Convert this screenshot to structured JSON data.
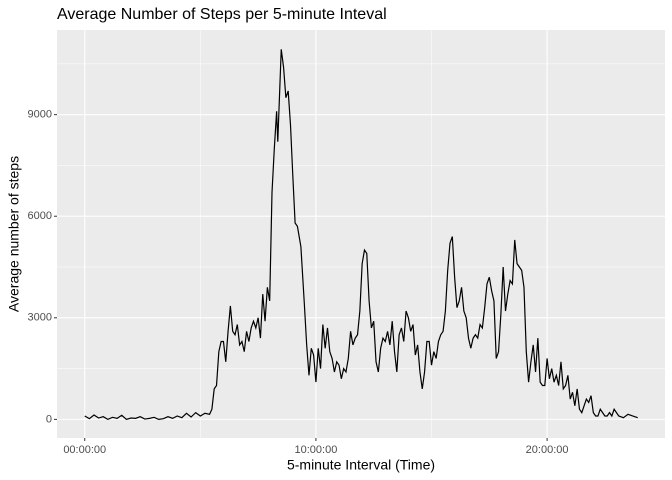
{
  "chart_data": {
    "type": "line",
    "title": "Average Number of Steps per 5-minute Inteval",
    "x_label": "5-minute Interval (Time)",
    "y_label": "Average number of steps",
    "xlim": [
      -1.2,
      25.1
    ],
    "ylim": [
      -550,
      11500
    ],
    "xticks": [
      {
        "value": 0,
        "label": "00:00:00"
      },
      {
        "value": 10,
        "label": "10:00:00"
      },
      {
        "value": 20,
        "label": "20:00:00"
      }
    ],
    "yticks": [
      0,
      3000,
      6000,
      9000
    ],
    "grid": true,
    "series": [
      {
        "color": "#000000",
        "x": [
          0,
          0.2,
          0.4,
          0.6,
          0.8,
          1.0,
          1.2,
          1.4,
          1.6,
          1.8,
          2.0,
          2.2,
          2.4,
          2.6,
          2.8,
          3.0,
          3.2,
          3.4,
          3.6,
          3.8,
          4.0,
          4.2,
          4.4,
          4.6,
          4.8,
          5.0,
          5.2,
          5.4,
          5.5,
          5.6,
          5.7,
          5.8,
          5.9,
          6.0,
          6.1,
          6.2,
          6.3,
          6.4,
          6.5,
          6.6,
          6.7,
          6.8,
          6.9,
          7.0,
          7.1,
          7.2,
          7.3,
          7.4,
          7.5,
          7.6,
          7.7,
          7.8,
          7.9,
          8.0,
          8.1,
          8.2,
          8.3,
          8.35,
          8.5,
          8.6,
          8.7,
          8.8,
          8.9,
          9.0,
          9.1,
          9.2,
          9.35,
          9.5,
          9.6,
          9.7,
          9.8,
          9.9,
          10.0,
          10.1,
          10.2,
          10.3,
          10.4,
          10.5,
          10.6,
          10.7,
          10.8,
          10.9,
          11.0,
          11.1,
          11.2,
          11.3,
          11.4,
          11.5,
          11.6,
          11.7,
          11.8,
          11.9,
          12.0,
          12.1,
          12.2,
          12.3,
          12.4,
          12.5,
          12.6,
          12.7,
          12.8,
          12.9,
          13.0,
          13.1,
          13.2,
          13.3,
          13.4,
          13.5,
          13.6,
          13.7,
          13.8,
          13.9,
          14.0,
          14.1,
          14.2,
          14.3,
          14.4,
          14.5,
          14.6,
          14.7,
          14.8,
          14.9,
          15.0,
          15.1,
          15.2,
          15.3,
          15.4,
          15.5,
          15.6,
          15.7,
          15.8,
          15.9,
          16.0,
          16.1,
          16.2,
          16.3,
          16.4,
          16.5,
          16.6,
          16.7,
          16.8,
          16.9,
          17.0,
          17.1,
          17.2,
          17.3,
          17.4,
          17.5,
          17.6,
          17.7,
          17.8,
          17.9,
          18.0,
          18.1,
          18.2,
          18.3,
          18.4,
          18.5,
          18.6,
          18.7,
          18.8,
          18.9,
          19.0,
          19.1,
          19.2,
          19.3,
          19.4,
          19.5,
          19.6,
          19.7,
          19.8,
          19.9,
          20.0,
          20.1,
          20.2,
          20.3,
          20.4,
          20.5,
          20.6,
          20.7,
          20.8,
          20.9,
          21.0,
          21.1,
          21.2,
          21.3,
          21.4,
          21.5,
          21.6,
          21.7,
          21.8,
          21.9,
          22.0,
          22.1,
          22.2,
          22.3,
          22.4,
          22.5,
          22.6,
          22.7,
          22.8,
          22.9,
          23.0,
          23.1,
          23.3,
          23.5,
          23.7,
          23.92
        ],
        "values": [
          100,
          20,
          130,
          40,
          80,
          0,
          60,
          30,
          120,
          0,
          40,
          30,
          80,
          10,
          30,
          60,
          0,
          20,
          80,
          30,
          100,
          50,
          180,
          70,
          200,
          100,
          180,
          150,
          300,
          900,
          1000,
          2000,
          2300,
          2300,
          1700,
          2600,
          3350,
          2600,
          2500,
          2800,
          2200,
          2300,
          2000,
          2600,
          2300,
          2700,
          2900,
          2700,
          3000,
          2400,
          3700,
          2900,
          3900,
          3500,
          6700,
          8000,
          9100,
          8200,
          10930,
          10400,
          9500,
          9700,
          8700,
          7200,
          5800,
          5700,
          5100,
          3400,
          2200,
          1300,
          2100,
          1900,
          1100,
          2100,
          1500,
          2800,
          2100,
          2700,
          2000,
          1800,
          1400,
          1700,
          1600,
          1200,
          1500,
          1400,
          1800,
          2600,
          2200,
          2400,
          2500,
          3200,
          4600,
          5000,
          4900,
          3500,
          2700,
          2900,
          1700,
          1400,
          2100,
          2400,
          2300,
          2600,
          2200,
          2900,
          2000,
          1400,
          2500,
          2700,
          2300,
          3200,
          3000,
          2600,
          2800,
          1900,
          2200,
          1400,
          900,
          1400,
          2300,
          2300,
          1600,
          2000,
          1800,
          2300,
          2500,
          2600,
          3200,
          4400,
          5200,
          5400,
          4200,
          3300,
          3500,
          3900,
          3200,
          3000,
          2400,
          2100,
          2400,
          2500,
          2400,
          2800,
          2700,
          3300,
          4000,
          4200,
          3800,
          3500,
          1800,
          2000,
          3100,
          4500,
          3200,
          3700,
          4100,
          4000,
          5300,
          4600,
          4500,
          4400,
          3900,
          2000,
          1100,
          1700,
          2200,
          1400,
          2400,
          1100,
          1000,
          1000,
          1800,
          1200,
          1500,
          1100,
          1300,
          1000,
          1700,
          900,
          1000,
          1300,
          600,
          800,
          400,
          900,
          300,
          200,
          400,
          600,
          500,
          700,
          200,
          100,
          100,
          300,
          200,
          100,
          100,
          200,
          100,
          300,
          200,
          100,
          50,
          150,
          100,
          50
        ]
      }
    ]
  }
}
